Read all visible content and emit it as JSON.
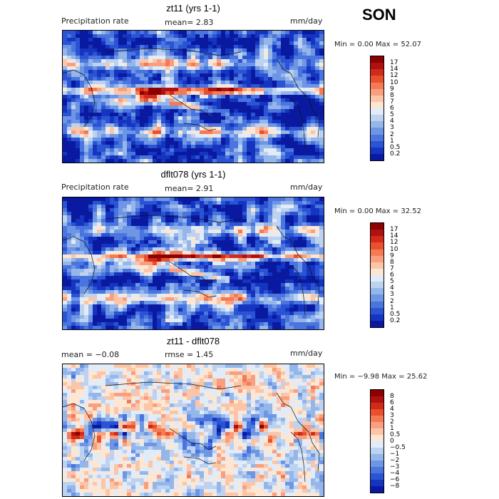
{
  "season": "SON",
  "panels": [
    {
      "title": "zt11 (yrs 1-1)",
      "left_label": "Precipitation rate",
      "stat": "mean=   2.83",
      "units": "mm/day",
      "minmax": "Min =    0.00 Max =  52.07",
      "colorbar_labels": [
        "17",
        "14",
        "12",
        "10",
        "9",
        "8",
        "7",
        "6",
        "5",
        "4",
        "3",
        "2",
        "1",
        "0.5",
        "0.2"
      ],
      "colorbar_colors": [
        "#8b0000",
        "#b01010",
        "#d22a1a",
        "#e8502e",
        "#f47a55",
        "#f99f7f",
        "#fcc5a8",
        "#fde6d2",
        "#e2ecf8",
        "#bcd2f0",
        "#94b6ea",
        "#6e96e4",
        "#4a75de",
        "#2b54d4",
        "#1535c0",
        "#0a1aa0"
      ],
      "field": "precip_a"
    },
    {
      "title": "dflt078 (yrs 1-1)",
      "left_label": "Precipitation rate",
      "stat": "mean=   2.91",
      "units": "mm/day",
      "minmax": "Min =    0.00 Max =  32.52",
      "colorbar_labels": [
        "17",
        "14",
        "12",
        "10",
        "9",
        "8",
        "7",
        "6",
        "5",
        "4",
        "3",
        "2",
        "1",
        "0.5",
        "0.2"
      ],
      "colorbar_colors": [
        "#8b0000",
        "#b01010",
        "#d22a1a",
        "#e8502e",
        "#f47a55",
        "#f99f7f",
        "#fcc5a8",
        "#fde6d2",
        "#e2ecf8",
        "#bcd2f0",
        "#94b6ea",
        "#6e96e4",
        "#4a75de",
        "#2b54d4",
        "#1535c0",
        "#0a1aa0"
      ],
      "field": "precip_b"
    },
    {
      "title": "zt11 - dflt078",
      "left_label": "mean =  −0.08",
      "stat": "rmse =    1.45",
      "units": "mm/day",
      "minmax": "Min =  −9.98 Max =  25.62",
      "colorbar_labels": [
        "8",
        "6",
        "4",
        "3",
        "2",
        "1",
        "0.5",
        "0",
        "−0.5",
        "−1",
        "−2",
        "−3",
        "−4",
        "−6",
        "−8"
      ],
      "colorbar_colors": [
        "#8b0000",
        "#b01010",
        "#d22a1a",
        "#e8502e",
        "#f47a55",
        "#f99f7f",
        "#fcc5a8",
        "#fde6d2",
        "#e2ecf8",
        "#bcd2f0",
        "#94b6ea",
        "#6e96e4",
        "#4a75de",
        "#2b54d4",
        "#1535c0",
        "#0a1aa0"
      ],
      "field": "diff"
    }
  ]
}
